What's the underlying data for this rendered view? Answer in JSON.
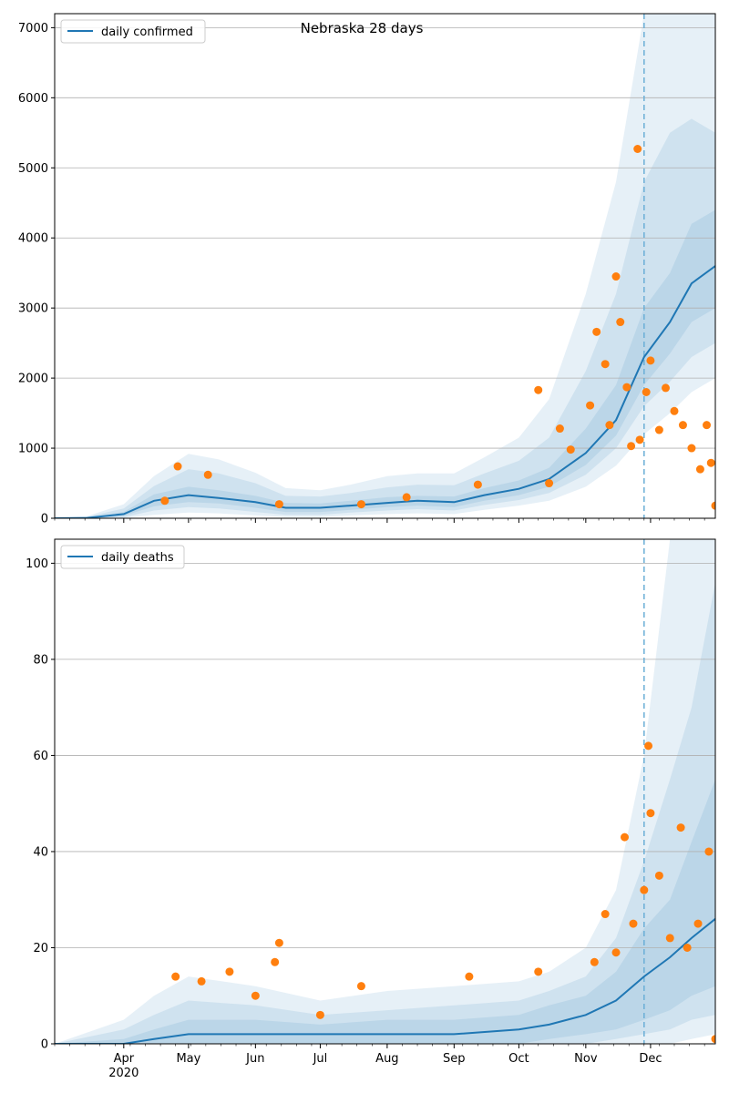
{
  "figure": {
    "title": "Nebraska 28 days"
  },
  "colors": {
    "line": "#1f77b4",
    "points": "#ff7f0e",
    "band": "#1f77b4",
    "forecast_marker": "#6aaed6",
    "grid": "#b0b0b0"
  },
  "chart_data": [
    {
      "type": "line",
      "name": "top-panel",
      "title": "Nebraska 28 days",
      "legend": [
        "daily confirmed"
      ],
      "legend_position": "upper left",
      "x_axis": "date",
      "xlim": [
        "2020-02-29",
        "2020-12-31"
      ],
      "ylim": [
        0,
        7200
      ],
      "yticks": [
        0,
        1000,
        2000,
        3000,
        4000,
        5000,
        6000,
        7000
      ],
      "xtick_labels": [
        "Apr",
        "May",
        "Jun",
        "Jul",
        "Aug",
        "Sep",
        "Oct",
        "Nov",
        "Dec"
      ],
      "xtick_dates": [
        "2020-04-01",
        "2020-05-01",
        "2020-06-01",
        "2020-07-01",
        "2020-08-01",
        "2020-09-01",
        "2020-10-01",
        "2020-11-01",
        "2020-12-01"
      ],
      "year_label": "2020",
      "grid": "horizontal",
      "forecast_start": "2020-11-28",
      "series": [
        {
          "name": "daily confirmed",
          "kind": "line",
          "x": [
            "2020-02-29",
            "2020-03-15",
            "2020-04-01",
            "2020-04-15",
            "2020-05-01",
            "2020-05-15",
            "2020-06-01",
            "2020-06-15",
            "2020-07-01",
            "2020-07-15",
            "2020-08-01",
            "2020-08-15",
            "2020-09-01",
            "2020-09-15",
            "2020-10-01",
            "2020-10-15",
            "2020-11-01",
            "2020-11-15",
            "2020-11-28",
            "2020-12-10",
            "2020-12-20",
            "2020-12-31"
          ],
          "y": [
            0,
            5,
            60,
            250,
            330,
            290,
            230,
            150,
            150,
            180,
            220,
            250,
            230,
            330,
            420,
            560,
            930,
            1400,
            2300,
            2800,
            3350,
            3600
          ]
        },
        {
          "name": "observed",
          "kind": "scatter",
          "x": [
            "2020-04-20",
            "2020-04-26",
            "2020-05-10",
            "2020-06-12",
            "2020-07-20",
            "2020-08-10",
            "2020-09-12",
            "2020-10-10",
            "2020-10-15",
            "2020-10-20",
            "2020-10-25",
            "2020-11-03",
            "2020-11-06",
            "2020-11-10",
            "2020-11-12",
            "2020-11-15",
            "2020-11-17",
            "2020-11-20",
            "2020-11-22",
            "2020-11-25",
            "2020-11-26",
            "2020-11-29",
            "2020-12-01",
            "2020-12-05",
            "2020-12-08",
            "2020-12-12",
            "2020-12-16",
            "2020-12-20",
            "2020-12-24",
            "2020-12-27",
            "2020-12-29",
            "2020-12-31"
          ],
          "y": [
            250,
            740,
            620,
            200,
            200,
            300,
            480,
            1830,
            500,
            1280,
            980,
            1610,
            2660,
            2200,
            1330,
            3450,
            2800,
            1870,
            1030,
            5270,
            1120,
            1800,
            2250,
            1260,
            1860,
            1530,
            1330,
            1000,
            700,
            1330,
            790,
            180
          ]
        }
      ],
      "bands": [
        {
          "x": [
            "2020-02-29",
            "2020-03-15",
            "2020-04-01",
            "2020-04-15",
            "2020-05-01",
            "2020-05-15",
            "2020-06-01",
            "2020-06-15",
            "2020-07-01",
            "2020-07-15",
            "2020-08-01",
            "2020-08-15",
            "2020-09-01",
            "2020-09-15",
            "2020-10-01",
            "2020-10-15",
            "2020-11-01",
            "2020-11-15",
            "2020-11-28",
            "2020-12-10",
            "2020-12-20",
            "2020-12-31"
          ],
          "lower": [
            0,
            0,
            5,
            50,
            80,
            70,
            40,
            20,
            20,
            40,
            60,
            70,
            60,
            120,
            180,
            250,
            450,
            750,
            1200,
            1500,
            1800,
            2000
          ],
          "upper": [
            0,
            30,
            200,
            600,
            920,
            840,
            650,
            430,
            400,
            480,
            600,
            640,
            640,
            870,
            1150,
            1700,
            3200,
            4800,
            7200,
            7200,
            7200,
            7200
          ]
        },
        {
          "x": [
            "2020-02-29",
            "2020-03-15",
            "2020-04-01",
            "2020-04-15",
            "2020-05-01",
            "2020-05-15",
            "2020-06-01",
            "2020-06-15",
            "2020-07-01",
            "2020-07-15",
            "2020-08-01",
            "2020-08-15",
            "2020-09-01",
            "2020-09-15",
            "2020-10-01",
            "2020-10-15",
            "2020-11-01",
            "2020-11-15",
            "2020-11-28",
            "2020-12-10",
            "2020-12-20",
            "2020-12-31"
          ],
          "lower": [
            0,
            0,
            15,
            110,
            160,
            140,
            90,
            50,
            50,
            80,
            110,
            130,
            110,
            190,
            260,
            360,
            620,
            1000,
            1600,
            1950,
            2300,
            2500
          ],
          "upper": [
            0,
            20,
            140,
            460,
            700,
            640,
            500,
            320,
            310,
            360,
            440,
            480,
            470,
            640,
            820,
            1150,
            2100,
            3200,
            4800,
            5500,
            5700,
            5500
          ]
        },
        {
          "x": [
            "2020-02-29",
            "2020-03-15",
            "2020-04-01",
            "2020-04-15",
            "2020-05-01",
            "2020-05-15",
            "2020-06-01",
            "2020-06-15",
            "2020-07-01",
            "2020-07-15",
            "2020-08-01",
            "2020-08-15",
            "2020-09-01",
            "2020-09-15",
            "2020-10-01",
            "2020-10-15",
            "2020-11-01",
            "2020-11-15",
            "2020-11-28",
            "2020-12-10",
            "2020-12-20",
            "2020-12-31"
          ],
          "lower": [
            0,
            2,
            35,
            170,
            230,
            210,
            150,
            90,
            90,
            120,
            160,
            180,
            160,
            250,
            330,
            450,
            760,
            1180,
            1900,
            2350,
            2800,
            3000
          ],
          "upper": [
            0,
            10,
            90,
            340,
            450,
            400,
            320,
            220,
            210,
            250,
            300,
            320,
            310,
            430,
            540,
            720,
            1280,
            1900,
            3000,
            3500,
            4200,
            4400
          ]
        }
      ]
    },
    {
      "type": "line",
      "name": "bottom-panel",
      "legend": [
        "daily deaths"
      ],
      "legend_position": "upper left",
      "x_axis": "date",
      "xlim": [
        "2020-02-29",
        "2020-12-31"
      ],
      "ylim": [
        0,
        105
      ],
      "yticks": [
        0,
        20,
        40,
        60,
        80,
        100
      ],
      "xtick_labels": [
        "Apr",
        "May",
        "Jun",
        "Jul",
        "Aug",
        "Sep",
        "Oct",
        "Nov",
        "Dec"
      ],
      "xtick_dates": [
        "2020-04-01",
        "2020-05-01",
        "2020-06-01",
        "2020-07-01",
        "2020-08-01",
        "2020-09-01",
        "2020-10-01",
        "2020-11-01",
        "2020-12-01"
      ],
      "year_label": "2020",
      "grid": "horizontal",
      "forecast_start": "2020-11-28",
      "series": [
        {
          "name": "daily deaths",
          "kind": "line",
          "x": [
            "2020-02-29",
            "2020-04-01",
            "2020-04-15",
            "2020-05-01",
            "2020-06-01",
            "2020-07-01",
            "2020-08-01",
            "2020-09-01",
            "2020-10-01",
            "2020-10-15",
            "2020-11-01",
            "2020-11-15",
            "2020-11-28",
            "2020-12-10",
            "2020-12-20",
            "2020-12-31"
          ],
          "y": [
            0,
            0,
            1,
            2,
            2,
            2,
            2,
            2,
            3,
            4,
            6,
            9,
            14,
            18,
            22,
            26
          ]
        },
        {
          "name": "observed",
          "kind": "scatter",
          "x": [
            "2020-04-25",
            "2020-05-07",
            "2020-05-20",
            "2020-06-01",
            "2020-06-10",
            "2020-06-12",
            "2020-07-01",
            "2020-07-20",
            "2020-09-08",
            "2020-10-10",
            "2020-11-05",
            "2020-11-10",
            "2020-11-15",
            "2020-11-19",
            "2020-11-23",
            "2020-11-28",
            "2020-11-30",
            "2020-12-01",
            "2020-12-05",
            "2020-12-10",
            "2020-12-15",
            "2020-12-18",
            "2020-12-23",
            "2020-12-28",
            "2020-12-31"
          ],
          "y": [
            14,
            13,
            15,
            10,
            17,
            21,
            6,
            12,
            14,
            15,
            17,
            27,
            19,
            43,
            25,
            32,
            62,
            48,
            35,
            22,
            45,
            20,
            25,
            40,
            1
          ]
        }
      ],
      "bands": [
        {
          "x": [
            "2020-02-29",
            "2020-04-01",
            "2020-04-15",
            "2020-05-01",
            "2020-06-01",
            "2020-07-01",
            "2020-08-01",
            "2020-09-01",
            "2020-10-01",
            "2020-10-15",
            "2020-11-01",
            "2020-11-15",
            "2020-11-28",
            "2020-12-10",
            "2020-12-20",
            "2020-12-31"
          ],
          "lower": [
            0,
            0,
            0,
            0,
            0,
            0,
            0,
            0,
            0,
            0,
            0,
            0,
            0,
            0,
            1,
            2
          ],
          "upper": [
            0,
            5,
            10,
            14,
            12,
            9,
            11,
            12,
            13,
            15,
            20,
            32,
            60,
            105,
            105,
            105
          ]
        },
        {
          "x": [
            "2020-02-29",
            "2020-04-01",
            "2020-04-15",
            "2020-05-01",
            "2020-06-01",
            "2020-07-01",
            "2020-08-01",
            "2020-09-01",
            "2020-10-01",
            "2020-10-15",
            "2020-11-01",
            "2020-11-15",
            "2020-11-28",
            "2020-12-10",
            "2020-12-20",
            "2020-12-31"
          ],
          "lower": [
            0,
            0,
            0,
            0,
            0,
            0,
            0,
            0,
            0,
            0,
            0,
            1,
            2,
            3,
            5,
            6
          ],
          "upper": [
            0,
            3,
            6,
            9,
            8,
            6,
            7,
            8,
            9,
            11,
            14,
            22,
            38,
            55,
            70,
            96
          ]
        },
        {
          "x": [
            "2020-02-29",
            "2020-04-01",
            "2020-04-15",
            "2020-05-01",
            "2020-06-01",
            "2020-07-01",
            "2020-08-01",
            "2020-09-01",
            "2020-10-01",
            "2020-10-15",
            "2020-11-01",
            "2020-11-15",
            "2020-11-28",
            "2020-12-10",
            "2020-12-20",
            "2020-12-31"
          ],
          "lower": [
            0,
            0,
            0,
            0,
            0,
            0,
            0,
            0,
            0,
            1,
            2,
            3,
            5,
            7,
            10,
            12
          ],
          "upper": [
            0,
            1,
            3,
            5,
            5,
            4,
            5,
            5,
            6,
            8,
            10,
            15,
            24,
            30,
            42,
            55
          ]
        }
      ]
    }
  ]
}
